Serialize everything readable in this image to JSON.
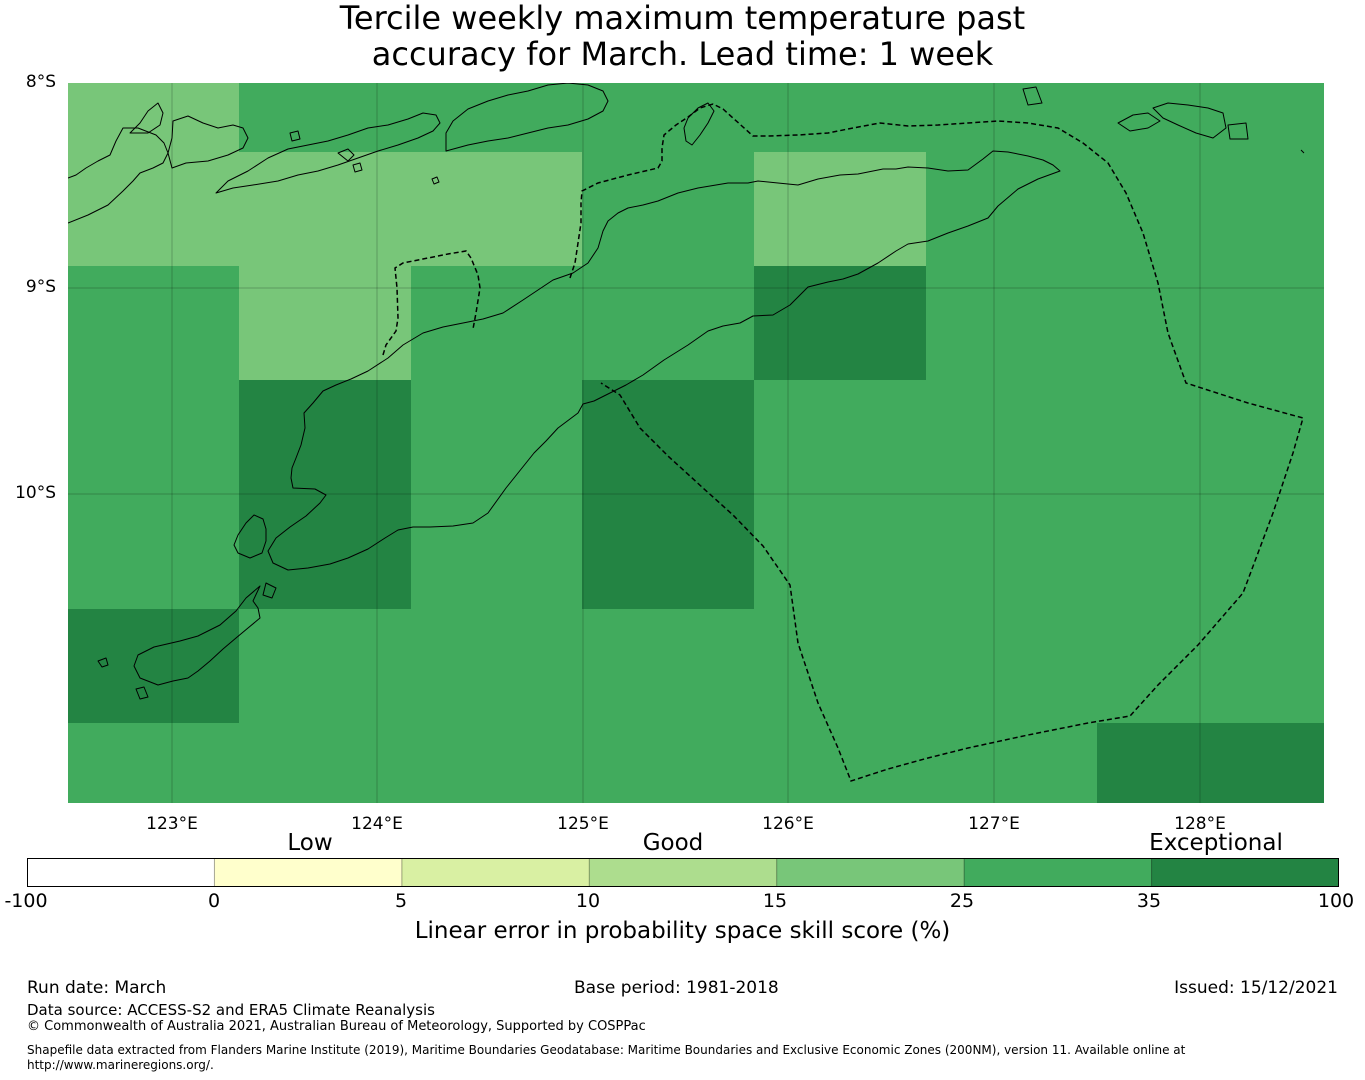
{
  "title": {
    "line1": "Tercile weekly maximum temperature past",
    "line2": "accuracy for March. Lead time: 1 week"
  },
  "map": {
    "lat_labels": [
      "8°S",
      "9°S",
      "10°S"
    ],
    "lon_labels": [
      "123°E",
      "124°E",
      "125°E",
      "126°E",
      "127°E",
      "128°E"
    ],
    "skill_grid": {
      "note_units": "skill score band per grid cell",
      "colors": {
        "band_15_25": "#78c679",
        "band_25_35": "#41ab5d",
        "band_35_100": "#238443"
      }
    }
  },
  "colorbar": {
    "category_labels": [
      "Low",
      "Good",
      "Exceptional"
    ],
    "tick_labels": [
      "-100",
      "0",
      "5",
      "10",
      "15",
      "25",
      "35",
      "100"
    ],
    "colors": [
      "#ffffff",
      "#ffffcc",
      "#d9f0a3",
      "#addd8e",
      "#78c679",
      "#41ab5d",
      "#238443"
    ],
    "title": "Linear error in probability space skill score (%)"
  },
  "footer": {
    "run_date": "Run date: March",
    "base_period": "Base period: 1981-2018",
    "issued": "Issued: 15/12/2021",
    "data_source": "Data source: ACCESS-S2 and ERA5 Climate Reanalysis",
    "copyright": "© Commonwealth of Australia 2021, Australian Bureau of Meteorology, Supported by COSPPac",
    "shapefile_line1": "Shapefile data extracted from Flanders Marine Institute (2019), Maritime Boundaries Geodatabase: Maritime Boundaries and Exclusive Economic Zones (200NM), version 11. Available online at",
    "shapefile_line2": "http://www.marineregions.org/."
  }
}
